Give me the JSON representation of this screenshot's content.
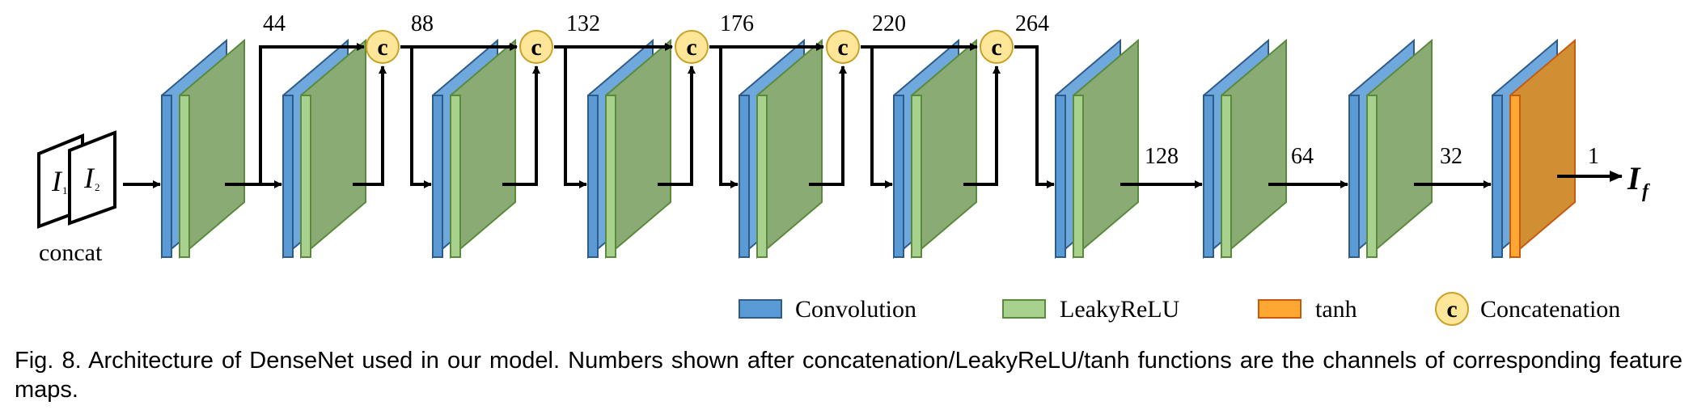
{
  "diagram": {
    "input_label": "concat",
    "input_letter_1": "I",
    "input_sub_1": "1",
    "input_letter_2": "I",
    "input_sub_2": "2",
    "dense_channels": [
      "44",
      "88",
      "132",
      "176",
      "220",
      "264"
    ],
    "tail_channels": [
      "128",
      "64",
      "32",
      "1"
    ],
    "concat_symbol": "c",
    "output_letter": "I",
    "output_sub": "f",
    "legend": {
      "convolution": "Convolution",
      "leakyrelu": "LeakyReLU",
      "tanh": "tanh",
      "concatenation": "Concatenation"
    },
    "colors": {
      "conv": "#5b9bd5",
      "leakyrelu": "#a9d18e",
      "leaky_side": "#8aab73",
      "tanh": "#ffa733",
      "tanh_side": "#d18f33",
      "concat_fill": "#ffe699"
    }
  },
  "caption": "Fig. 8. Architecture of DenseNet used in our model. Numbers shown after concatenation/LeakyReLU/tanh functions are the channels of corresponding feature maps."
}
